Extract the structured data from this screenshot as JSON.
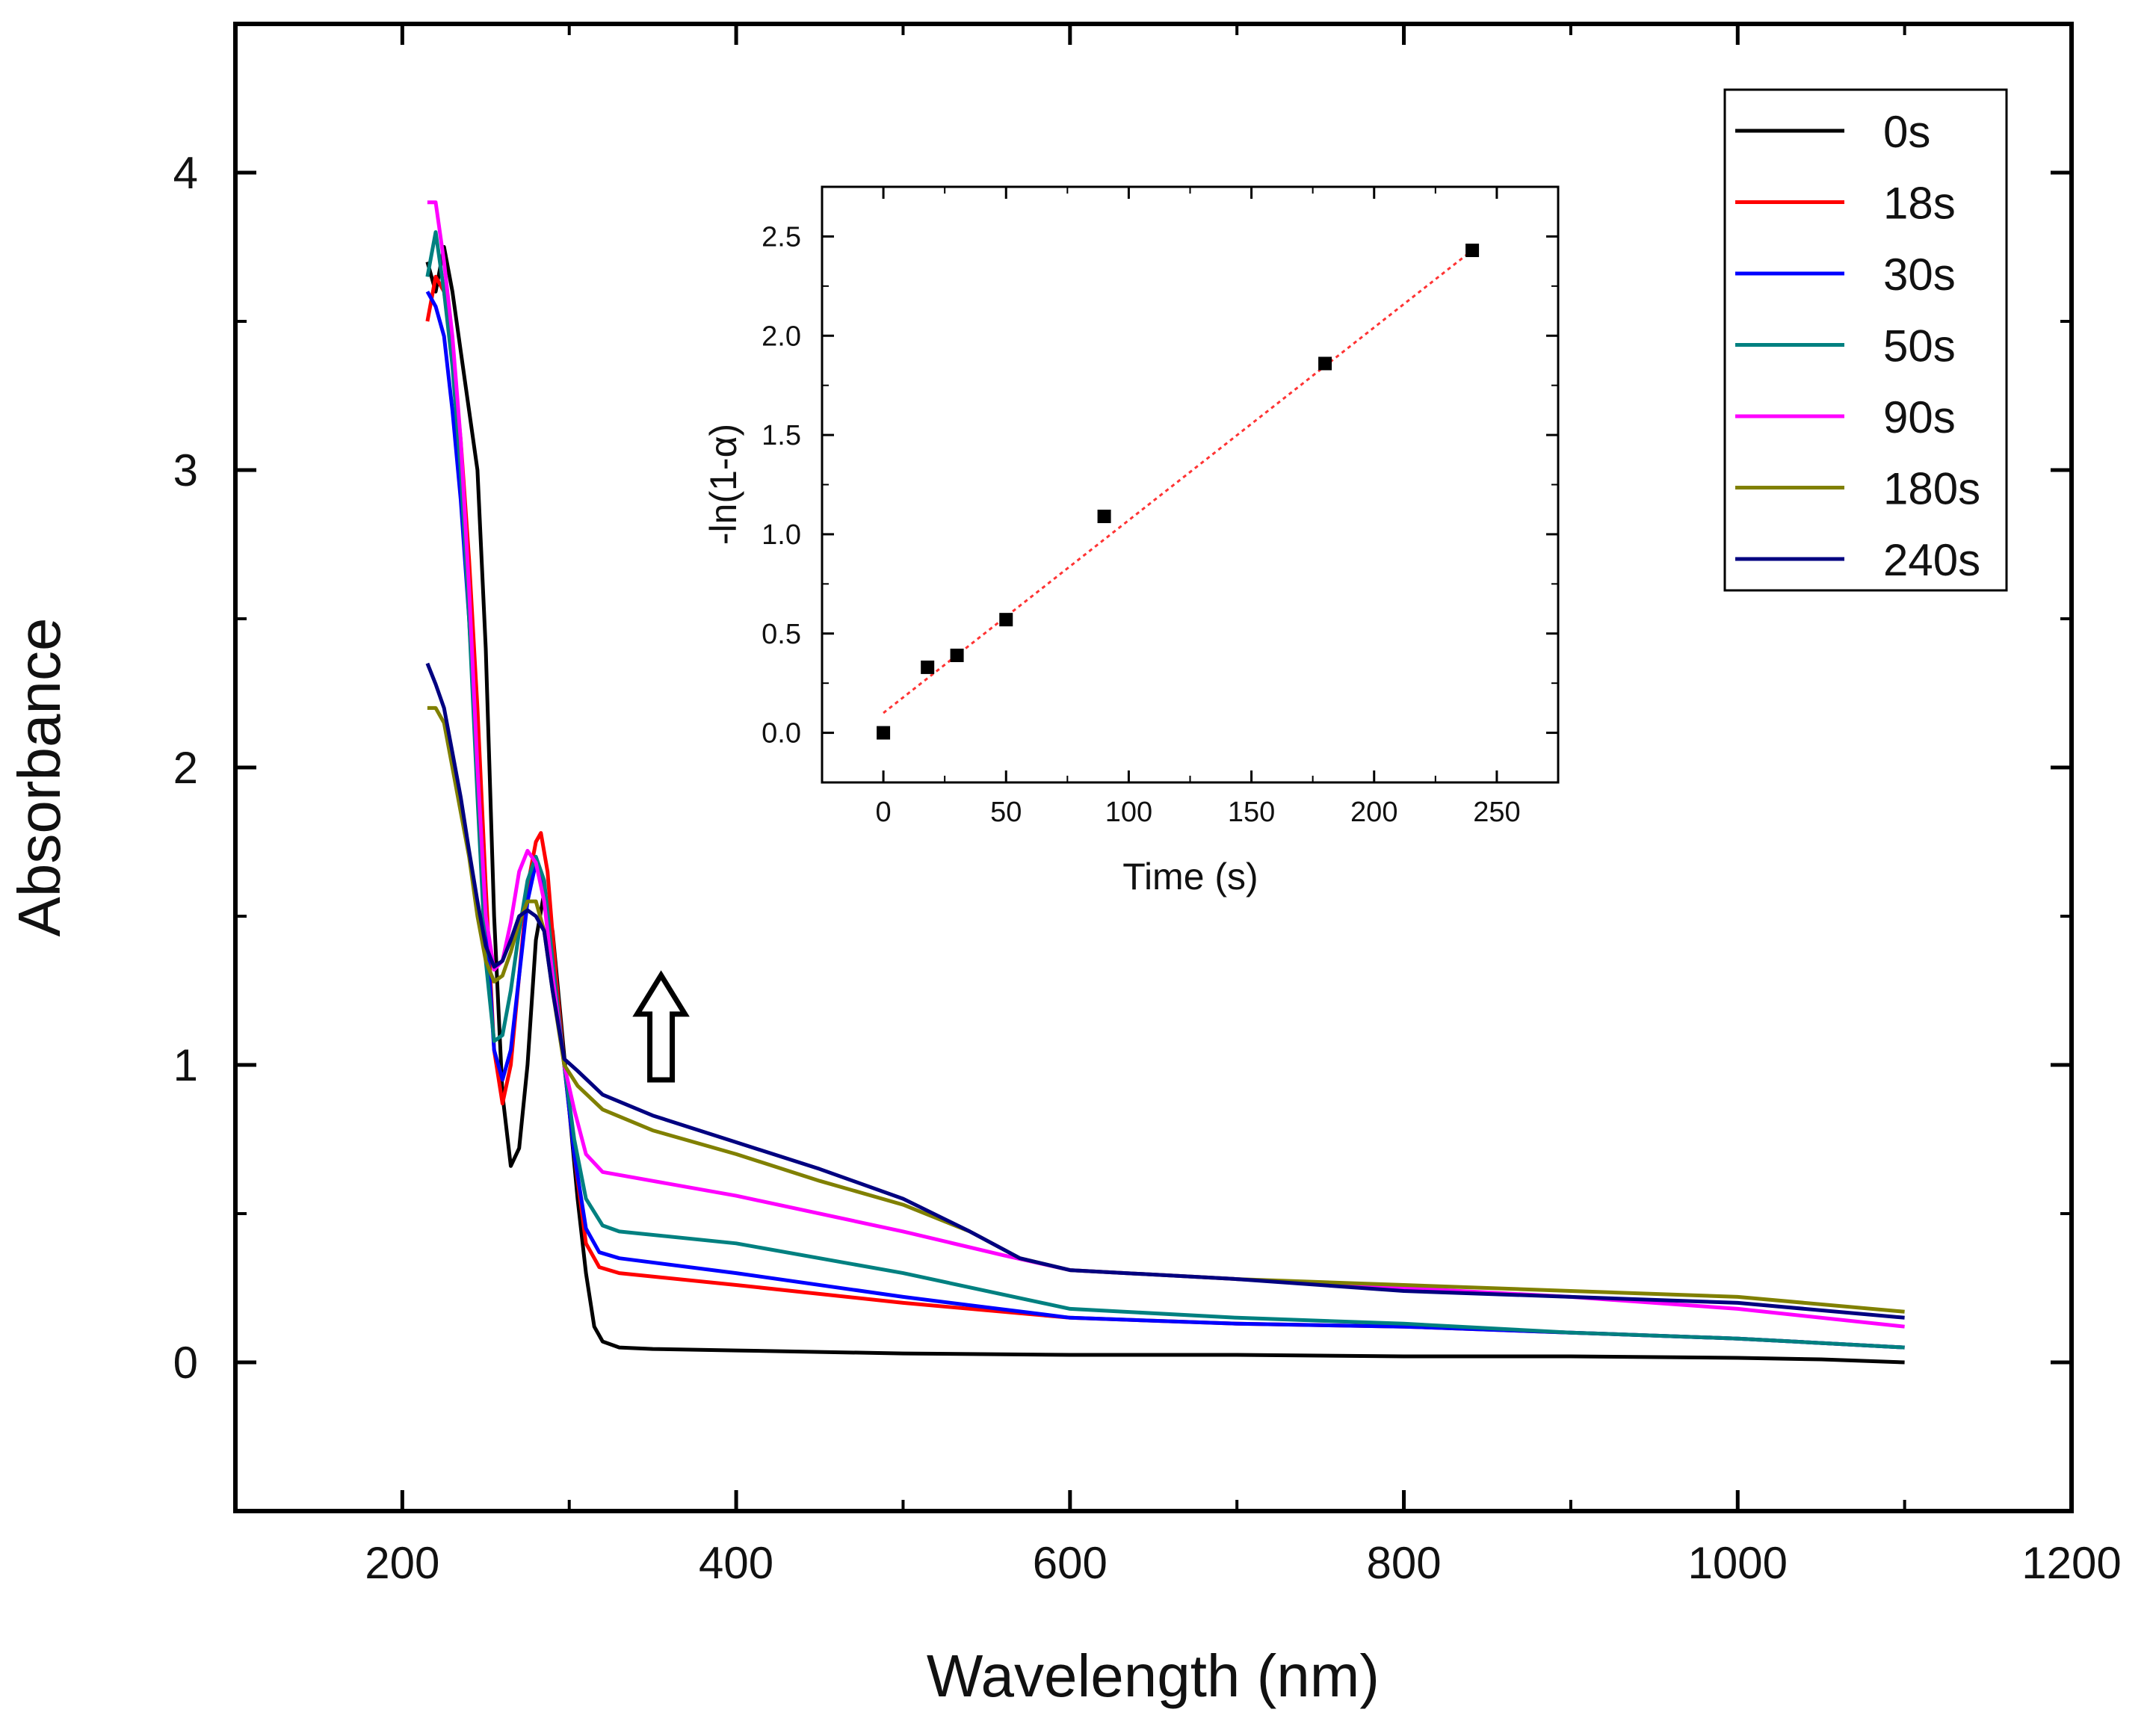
{
  "chart_data": [
    {
      "type": "line",
      "title": "",
      "xlabel": "Wavelength (nm)",
      "ylabel": "Absorbance",
      "xlim": [
        100,
        1200
      ],
      "ylim": [
        -0.5,
        4.5
      ],
      "xticks": [
        200,
        400,
        600,
        800,
        1000,
        1200
      ],
      "yticks": [
        0,
        1,
        2,
        3,
        4
      ],
      "xtick_labels": [
        "200",
        "400",
        "600",
        "800",
        "1000",
        "1200"
      ],
      "ytick_labels": [
        "0",
        "1",
        "2",
        "3",
        "4"
      ],
      "legend_position": "top-right",
      "annotations": [
        {
          "type": "arrow-up",
          "x": 355,
          "y": 1.0,
          "meaning": "absorbance increases with time"
        }
      ],
      "series": [
        {
          "name": "0s",
          "color": "#000000",
          "points": [
            [
              215,
              3.7
            ],
            [
              220,
              3.6
            ],
            [
              225,
              3.75
            ],
            [
              230,
              3.6
            ],
            [
              235,
              3.4
            ],
            [
              240,
              3.2
            ],
            [
              245,
              3.0
            ],
            [
              250,
              2.4
            ],
            [
              255,
              1.5
            ],
            [
              260,
              0.9
            ],
            [
              265,
              0.66
            ],
            [
              270,
              0.72
            ],
            [
              275,
              1.0
            ],
            [
              280,
              1.42
            ],
            [
              285,
              1.58
            ],
            [
              290,
              1.45
            ],
            [
              295,
              1.15
            ],
            [
              300,
              0.85
            ],
            [
              305,
              0.55
            ],
            [
              310,
              0.3
            ],
            [
              315,
              0.12
            ],
            [
              320,
              0.07
            ],
            [
              330,
              0.05
            ],
            [
              350,
              0.045
            ],
            [
              400,
              0.04
            ],
            [
              500,
              0.03
            ],
            [
              600,
              0.025
            ],
            [
              700,
              0.025
            ],
            [
              800,
              0.02
            ],
            [
              900,
              0.02
            ],
            [
              1000,
              0.015
            ],
            [
              1050,
              0.01
            ],
            [
              1100,
              0.0
            ]
          ]
        },
        {
          "name": "18s",
          "color": "#ff0000",
          "points": [
            [
              215,
              3.5
            ],
            [
              220,
              3.65
            ],
            [
              225,
              3.6
            ],
            [
              230,
              3.4
            ],
            [
              235,
              3.1
            ],
            [
              240,
              2.7
            ],
            [
              245,
              2.2
            ],
            [
              250,
              1.6
            ],
            [
              255,
              1.05
            ],
            [
              260,
              0.87
            ],
            [
              265,
              1.0
            ],
            [
              270,
              1.3
            ],
            [
              275,
              1.6
            ],
            [
              280,
              1.75
            ],
            [
              283,
              1.78
            ],
            [
              287,
              1.65
            ],
            [
              292,
              1.3
            ],
            [
              297,
              1.0
            ],
            [
              303,
              0.7
            ],
            [
              310,
              0.4
            ],
            [
              318,
              0.32
            ],
            [
              330,
              0.3
            ],
            [
              400,
              0.26
            ],
            [
              500,
              0.2
            ],
            [
              600,
              0.15
            ],
            [
              700,
              0.13
            ],
            [
              800,
              0.12
            ],
            [
              900,
              0.1
            ],
            [
              1000,
              0.08
            ],
            [
              1100,
              0.05
            ]
          ]
        },
        {
          "name": "30s",
          "color": "#0000ff",
          "points": [
            [
              215,
              3.6
            ],
            [
              220,
              3.55
            ],
            [
              225,
              3.45
            ],
            [
              230,
              3.2
            ],
            [
              235,
              2.9
            ],
            [
              240,
              2.5
            ],
            [
              245,
              2.0
            ],
            [
              250,
              1.5
            ],
            [
              255,
              1.05
            ],
            [
              260,
              0.95
            ],
            [
              265,
              1.05
            ],
            [
              270,
              1.3
            ],
            [
              275,
              1.55
            ],
            [
              280,
              1.68
            ],
            [
              285,
              1.6
            ],
            [
              290,
              1.35
            ],
            [
              297,
              1.0
            ],
            [
              303,
              0.7
            ],
            [
              310,
              0.45
            ],
            [
              318,
              0.37
            ],
            [
              330,
              0.35
            ],
            [
              400,
              0.3
            ],
            [
              500,
              0.22
            ],
            [
              600,
              0.15
            ],
            [
              700,
              0.13
            ],
            [
              800,
              0.12
            ],
            [
              900,
              0.1
            ],
            [
              1000,
              0.08
            ],
            [
              1100,
              0.05
            ]
          ]
        },
        {
          "name": "50s",
          "color": "#008080",
          "points": [
            [
              215,
              3.65
            ],
            [
              220,
              3.8
            ],
            [
              225,
              3.6
            ],
            [
              230,
              3.35
            ],
            [
              235,
              3.0
            ],
            [
              240,
              2.5
            ],
            [
              245,
              1.9
            ],
            [
              250,
              1.35
            ],
            [
              255,
              1.08
            ],
            [
              260,
              1.1
            ],
            [
              265,
              1.25
            ],
            [
              270,
              1.45
            ],
            [
              275,
              1.62
            ],
            [
              280,
              1.7
            ],
            [
              285,
              1.62
            ],
            [
              290,
              1.35
            ],
            [
              297,
              1.0
            ],
            [
              303,
              0.75
            ],
            [
              310,
              0.55
            ],
            [
              320,
              0.46
            ],
            [
              330,
              0.44
            ],
            [
              400,
              0.4
            ],
            [
              500,
              0.3
            ],
            [
              600,
              0.18
            ],
            [
              700,
              0.15
            ],
            [
              800,
              0.13
            ],
            [
              900,
              0.1
            ],
            [
              1000,
              0.08
            ],
            [
              1100,
              0.05
            ]
          ]
        },
        {
          "name": "90s",
          "color": "#ff00ff",
          "points": [
            [
              215,
              3.9
            ],
            [
              220,
              3.9
            ],
            [
              225,
              3.7
            ],
            [
              230,
              3.45
            ],
            [
              235,
              3.1
            ],
            [
              240,
              2.6
            ],
            [
              245,
              2.0
            ],
            [
              250,
              1.5
            ],
            [
              255,
              1.32
            ],
            [
              260,
              1.35
            ],
            [
              265,
              1.48
            ],
            [
              270,
              1.65
            ],
            [
              275,
              1.72
            ],
            [
              280,
              1.68
            ],
            [
              285,
              1.55
            ],
            [
              290,
              1.3
            ],
            [
              297,
              1.0
            ],
            [
              303,
              0.85
            ],
            [
              310,
              0.7
            ],
            [
              320,
              0.64
            ],
            [
              400,
              0.56
            ],
            [
              500,
              0.44
            ],
            [
              560,
              0.36
            ],
            [
              600,
              0.31
            ],
            [
              700,
              0.28
            ],
            [
              800,
              0.25
            ],
            [
              900,
              0.22
            ],
            [
              1000,
              0.18
            ],
            [
              1100,
              0.12
            ]
          ]
        },
        {
          "name": "180s",
          "color": "#808000",
          "points": [
            [
              215,
              2.2
            ],
            [
              220,
              2.2
            ],
            [
              225,
              2.15
            ],
            [
              230,
              2.0
            ],
            [
              235,
              1.85
            ],
            [
              240,
              1.7
            ],
            [
              245,
              1.5
            ],
            [
              250,
              1.35
            ],
            [
              255,
              1.28
            ],
            [
              260,
              1.3
            ],
            [
              265,
              1.38
            ],
            [
              270,
              1.48
            ],
            [
              275,
              1.55
            ],
            [
              280,
              1.55
            ],
            [
              285,
              1.45
            ],
            [
              290,
              1.25
            ],
            [
              297,
              1.0
            ],
            [
              305,
              0.93
            ],
            [
              320,
              0.85
            ],
            [
              350,
              0.78
            ],
            [
              400,
              0.7
            ],
            [
              450,
              0.61
            ],
            [
              500,
              0.53
            ],
            [
              540,
              0.44
            ],
            [
              570,
              0.35
            ],
            [
              600,
              0.31
            ],
            [
              700,
              0.28
            ],
            [
              800,
              0.26
            ],
            [
              900,
              0.24
            ],
            [
              1000,
              0.22
            ],
            [
              1100,
              0.17
            ]
          ]
        },
        {
          "name": "240s",
          "color": "#000080",
          "points": [
            [
              215,
              2.35
            ],
            [
              220,
              2.28
            ],
            [
              225,
              2.2
            ],
            [
              230,
              2.05
            ],
            [
              235,
              1.9
            ],
            [
              240,
              1.72
            ],
            [
              245,
              1.55
            ],
            [
              250,
              1.4
            ],
            [
              255,
              1.33
            ],
            [
              260,
              1.35
            ],
            [
              265,
              1.42
            ],
            [
              270,
              1.5
            ],
            [
              275,
              1.52
            ],
            [
              280,
              1.5
            ],
            [
              285,
              1.45
            ],
            [
              290,
              1.25
            ],
            [
              297,
              1.02
            ],
            [
              305,
              0.98
            ],
            [
              320,
              0.9
            ],
            [
              350,
              0.83
            ],
            [
              400,
              0.74
            ],
            [
              450,
              0.65
            ],
            [
              500,
              0.55
            ],
            [
              540,
              0.44
            ],
            [
              570,
              0.35
            ],
            [
              600,
              0.31
            ],
            [
              700,
              0.28
            ],
            [
              800,
              0.24
            ],
            [
              900,
              0.22
            ],
            [
              1000,
              0.2
            ],
            [
              1100,
              0.15
            ]
          ]
        }
      ]
    },
    {
      "type": "scatter",
      "title": "",
      "xlabel": "Time (s)",
      "ylabel": "-ln(1-α)",
      "xlim": [
        -25,
        275
      ],
      "ylim": [
        -0.25,
        2.75
      ],
      "xticks": [
        0,
        50,
        100,
        150,
        200,
        250
      ],
      "yticks": [
        0.0,
        0.5,
        1.0,
        1.5,
        2.0,
        2.5
      ],
      "xtick_labels": [
        "0",
        "50",
        "100",
        "150",
        "200",
        "250"
      ],
      "ytick_labels": [
        "0.0",
        "0.5",
        "1.0",
        "1.5",
        "2.0",
        "2.5"
      ],
      "points": [
        [
          0,
          0.0
        ],
        [
          18,
          0.33
        ],
        [
          30,
          0.39
        ],
        [
          50,
          0.57
        ],
        [
          90,
          1.09
        ],
        [
          180,
          1.86
        ],
        [
          240,
          2.43
        ]
      ],
      "fit_line": {
        "style": "dotted",
        "color": "#ff3333",
        "from": [
          0,
          0.1
        ],
        "to": [
          240,
          2.43
        ]
      },
      "marker_color": "#000000"
    }
  ]
}
